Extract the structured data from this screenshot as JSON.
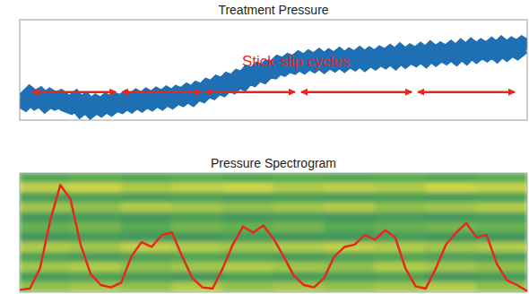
{
  "chart_data": [
    {
      "type": "line",
      "title": "Treatment Pressure",
      "annotation": "Stick-slip cycles",
      "tick_labels": false,
      "color": "#1f6fb4",
      "line_style": "band",
      "xlim": [
        0,
        100
      ],
      "ylim": [
        0,
        100
      ],
      "x": [
        0,
        1,
        2,
        3,
        4,
        5,
        6,
        7,
        8,
        9,
        10,
        11,
        12,
        13,
        14,
        15,
        16,
        17,
        18,
        19,
        20,
        21,
        22,
        23,
        24,
        25,
        26,
        27,
        28,
        29,
        30,
        31,
        32,
        33,
        34,
        35,
        36,
        37,
        38,
        39,
        40,
        41,
        42,
        43,
        44,
        45,
        46,
        47,
        48,
        49,
        50,
        51,
        52,
        53,
        54,
        55,
        56,
        57,
        58,
        59,
        60,
        61,
        62,
        63,
        64,
        65,
        66,
        67,
        68,
        69,
        70,
        71,
        72,
        73,
        74,
        75,
        76,
        77,
        78,
        79,
        80,
        81,
        82,
        83,
        84,
        85,
        86,
        87,
        88,
        89,
        90,
        91,
        92,
        93,
        94,
        95,
        96,
        97,
        98,
        99,
        100
      ],
      "values": [
        22,
        19,
        24,
        20,
        23,
        18,
        22,
        19,
        21,
        17,
        15,
        19,
        13,
        17,
        12,
        16,
        13,
        17,
        14,
        18,
        16,
        20,
        17,
        21,
        18,
        22,
        19,
        23,
        20,
        24,
        21,
        25,
        23,
        27,
        24,
        29,
        27,
        32,
        30,
        35,
        33,
        38,
        36,
        41,
        39,
        45,
        43,
        48,
        46,
        51,
        50,
        55,
        53,
        57,
        55,
        59,
        56,
        60,
        57,
        61,
        57,
        61,
        58,
        62,
        58,
        62,
        59,
        63,
        59,
        63,
        60,
        64,
        61,
        65,
        61,
        66,
        62,
        66,
        63,
        67,
        63,
        68,
        64,
        68,
        65,
        69,
        65,
        70,
        66,
        71,
        67,
        71,
        68,
        72,
        68,
        73,
        69,
        73,
        70,
        74,
        71
      ],
      "cycles": [
        [
          2.3,
          19.1
        ],
        [
          20.0,
          35.9
        ],
        [
          36.4,
          54.4
        ],
        [
          55.3,
          77.4
        ],
        [
          78.3,
          97.7
        ]
      ]
    },
    {
      "type": "heatmap",
      "title": "Pressure Spectrogram",
      "tick_labels": false,
      "xlim": [
        0,
        100
      ],
      "ylim": [
        0,
        100
      ],
      "zlim": [
        0,
        1
      ],
      "cells": [
        [
          0.45,
          0.5,
          0.45,
          0.5,
          0.45,
          0.5,
          0.45,
          0.5,
          0.45,
          0.5
        ],
        [
          0.85,
          0.9,
          0.8,
          0.85,
          0.9,
          0.8,
          0.85,
          0.8,
          0.9,
          0.85
        ],
        [
          0.35,
          0.4,
          0.35,
          0.4,
          0.35,
          0.4,
          0.35,
          0.4,
          0.35,
          0.4
        ],
        [
          0.75,
          0.7,
          0.8,
          0.75,
          0.7,
          0.75,
          0.8,
          0.7,
          0.75,
          0.8
        ],
        [
          0.3,
          0.35,
          0.3,
          0.4,
          0.3,
          0.35,
          0.3,
          0.35,
          0.3,
          0.35
        ],
        [
          0.55,
          0.6,
          0.5,
          0.6,
          0.55,
          0.6,
          0.5,
          0.55,
          0.6,
          0.55
        ],
        [
          0.3,
          0.35,
          0.3,
          0.3,
          0.35,
          0.3,
          0.3,
          0.35,
          0.3,
          0.3
        ],
        [
          0.8,
          0.75,
          0.85,
          0.8,
          0.75,
          0.8,
          0.85,
          0.8,
          0.75,
          0.8
        ],
        [
          0.4,
          0.35,
          0.4,
          0.45,
          0.4,
          0.35,
          0.4,
          0.45,
          0.4,
          0.35
        ],
        [
          0.75,
          0.8,
          0.7,
          0.75,
          0.8,
          0.75,
          0.7,
          0.8,
          0.75,
          0.7
        ],
        [
          0.35,
          0.4,
          0.35,
          0.3,
          0.4,
          0.35,
          0.35,
          0.4,
          0.3,
          0.35
        ],
        [
          0.7,
          0.75,
          0.7,
          0.8,
          0.7,
          0.75,
          0.7,
          0.75,
          0.8,
          0.7
        ]
      ],
      "x": [
        0,
        2,
        4,
        6,
        8,
        10,
        12,
        14,
        16,
        18,
        20,
        22,
        24,
        26,
        28,
        30,
        32,
        34,
        36,
        38,
        40,
        42,
        44,
        46,
        48,
        50,
        52,
        54,
        56,
        58,
        60,
        62,
        64,
        66,
        68,
        70,
        72,
        74,
        76,
        78,
        80,
        82,
        84,
        86,
        88,
        90,
        92,
        94,
        96,
        98,
        100
      ],
      "series": [
        {
          "type": "line",
          "color": "#e8261c",
          "values": [
            2,
            3,
            20,
            60,
            90,
            78,
            40,
            15,
            6,
            4,
            8,
            30,
            42,
            38,
            48,
            50,
            30,
            12,
            4,
            3,
            20,
            40,
            55,
            50,
            56,
            45,
            30,
            14,
            6,
            4,
            12,
            30,
            38,
            40,
            48,
            44,
            52,
            46,
            20,
            5,
            3,
            20,
            40,
            50,
            58,
            46,
            48,
            24,
            10,
            6,
            1
          ]
        }
      ]
    }
  ]
}
